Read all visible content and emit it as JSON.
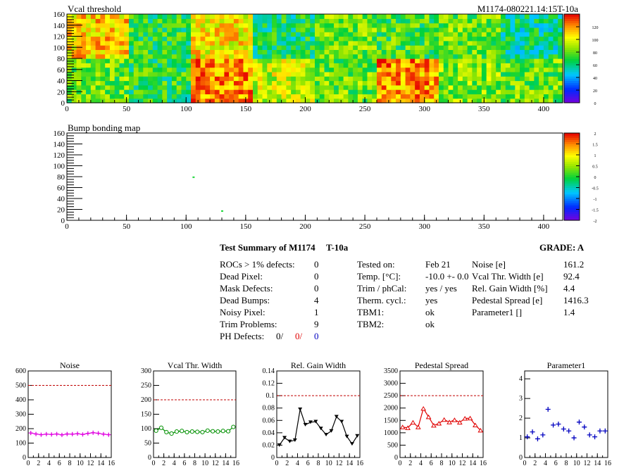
{
  "chart_data": [
    {
      "type": "heatmap",
      "title": "Vcal threshold",
      "module_label": "M1174-080221.14:15T-10a",
      "xlim": [
        0,
        416
      ],
      "ylim": [
        0,
        160
      ],
      "x_ticks": [
        0,
        50,
        100,
        150,
        200,
        250,
        300,
        350,
        400
      ],
      "y_ticks": [
        0,
        20,
        40,
        60,
        80,
        100,
        120,
        140,
        160
      ],
      "colorbar_ticks": [
        0,
        20,
        40,
        60,
        80,
        100,
        120
      ],
      "z_range": [
        0,
        140
      ],
      "roc_mean_values_top": [
        110,
        70,
        105,
        65,
        80,
        75,
        80,
        60
      ],
      "roc_mean_values_bottom": [
        80,
        70,
        120,
        95,
        80,
        120,
        85,
        80
      ]
    },
    {
      "type": "heatmap",
      "title": "Bump bonding map",
      "xlim": [
        0,
        416
      ],
      "ylim": [
        0,
        160
      ],
      "x_ticks": [
        0,
        50,
        100,
        150,
        200,
        250,
        300,
        350,
        400
      ],
      "y_ticks": [
        0,
        20,
        40,
        60,
        80,
        100,
        120,
        140,
        160
      ],
      "colorbar_ticks": [
        -2,
        -1.5,
        -1,
        -0.5,
        0,
        0.5,
        1,
        1.5,
        2
      ],
      "z_range": [
        -2,
        2
      ],
      "points": [
        {
          "x": 106,
          "y": 79
        },
        {
          "x": 130,
          "y": 17
        }
      ]
    },
    {
      "type": "line",
      "title": "Noise",
      "color": "#e000e0",
      "marker": "cross",
      "x": [
        0,
        1,
        2,
        3,
        4,
        5,
        6,
        7,
        8,
        9,
        10,
        11,
        12,
        13,
        14,
        15
      ],
      "values": [
        170,
        163,
        158,
        162,
        160,
        163,
        157,
        163,
        162,
        165,
        160,
        167,
        172,
        168,
        162,
        158
      ],
      "ylim": [
        0,
        600
      ],
      "y_ticks": [
        0,
        100,
        200,
        300,
        400,
        500,
        600
      ],
      "x_ticks": [
        0,
        2,
        4,
        6,
        8,
        10,
        12,
        14,
        16
      ],
      "threshold": 500
    },
    {
      "type": "line",
      "title": "Vcal Thr. Width",
      "color": "#009000",
      "marker": "circle",
      "x": [
        0,
        1,
        2,
        3,
        4,
        5,
        6,
        7,
        8,
        9,
        10,
        11,
        12,
        13,
        14,
        15
      ],
      "values": [
        93,
        103,
        88,
        83,
        90,
        92,
        88,
        90,
        89,
        88,
        93,
        91,
        90,
        92,
        91,
        106
      ],
      "ylim": [
        0,
        300
      ],
      "y_ticks": [
        0,
        50,
        100,
        150,
        200,
        250,
        300
      ],
      "x_ticks": [
        0,
        2,
        4,
        6,
        8,
        10,
        12,
        14,
        16
      ],
      "threshold": 200
    },
    {
      "type": "line",
      "title": "Rel. Gain Width",
      "color": "#000000",
      "marker": "triangle-down",
      "x": [
        0,
        1,
        2,
        3,
        4,
        5,
        6,
        7,
        8,
        9,
        10,
        11,
        12,
        13,
        14,
        15
      ],
      "values": [
        0.02,
        0.032,
        0.026,
        0.028,
        0.078,
        0.053,
        0.057,
        0.058,
        0.047,
        0.037,
        0.043,
        0.066,
        0.058,
        0.034,
        0.022,
        0.035
      ],
      "ylim": [
        0,
        0.14
      ],
      "y_ticks": [
        0,
        0.02,
        0.04,
        0.06,
        0.08,
        0.1,
        0.12,
        0.14
      ],
      "y_tick_labels": [
        "0",
        "0.02",
        "0.04",
        "0.06",
        "0.08",
        "0.1",
        "0.12",
        "0.14"
      ],
      "x_ticks": [
        0,
        2,
        4,
        6,
        8,
        10,
        12,
        14,
        16
      ],
      "threshold": 0.1
    },
    {
      "type": "line",
      "title": "Pedestal Spread",
      "color": "#e00000",
      "marker": "triangle-up",
      "x": [
        0,
        1,
        2,
        3,
        4,
        5,
        6,
        7,
        8,
        9,
        10,
        11,
        12,
        13,
        14,
        15
      ],
      "values": [
        1230,
        1200,
        1420,
        1230,
        1980,
        1640,
        1300,
        1380,
        1530,
        1430,
        1520,
        1420,
        1580,
        1590,
        1310,
        1100
      ],
      "ylim": [
        0,
        3500
      ],
      "y_ticks": [
        0,
        500,
        1000,
        1500,
        2000,
        2500,
        3000,
        3500
      ],
      "x_ticks": [
        0,
        2,
        4,
        6,
        8,
        10,
        12,
        14,
        16
      ],
      "threshold": 2500
    },
    {
      "type": "scatter",
      "title": "Parameter1",
      "color": "#0000c0",
      "marker": "cross",
      "x": [
        0,
        1,
        2,
        3,
        4,
        5,
        6,
        7,
        8,
        9,
        10,
        11,
        12,
        13,
        14,
        15
      ],
      "values": [
        1.05,
        1.3,
        0.95,
        1.15,
        2.45,
        1.65,
        1.7,
        1.45,
        1.35,
        1.0,
        1.8,
        1.55,
        1.15,
        1.05,
        1.35,
        1.35
      ],
      "ylim": [
        0,
        4.4
      ],
      "y_ticks": [
        0,
        1,
        2,
        3,
        4
      ],
      "x_ticks": [
        0,
        2,
        4,
        6,
        8,
        10,
        12,
        14,
        16
      ]
    }
  ],
  "summary": {
    "title": "Test Summary of M1174",
    "temp_id": "T-10a",
    "grade": "GRADE:  A",
    "col1": [
      {
        "label": "ROCs > 1% defects:",
        "value": "0"
      },
      {
        "label": "Dead Pixel:",
        "value": "0"
      },
      {
        "label": "Mask Defects:",
        "value": "0"
      },
      {
        "label": "Dead Bumps:",
        "value": "4"
      },
      {
        "label": "Noisy Pixel:",
        "value": "1"
      },
      {
        "label": "Trim Problems:",
        "value": "9"
      }
    ],
    "ph_label": "PH Defects:",
    "ph_values": [
      "0/",
      "0/",
      "0"
    ],
    "ph_colors": [
      "#000000",
      "#e00000",
      "#0000c0"
    ],
    "col2": [
      {
        "label": "Tested on:",
        "value": "Feb 21"
      },
      {
        "label": "Temp. [°C]:",
        "value": "-10.0 +- 0.0"
      },
      {
        "label": "Trim / phCal:",
        "value": "yes / yes"
      },
      {
        "label": "Therm. cycl.:",
        "value": "yes"
      },
      {
        "label": "TBM1:",
        "value": "ok"
      },
      {
        "label": "TBM2:",
        "value": "ok"
      }
    ],
    "col3": [
      {
        "label": "Noise [e]",
        "value": "161.2"
      },
      {
        "label": "Vcal Thr. Width [e]",
        "value": "92.4"
      },
      {
        "label": "Rel. Gain Width [%]",
        "value": "4.4"
      },
      {
        "label": "Pedestal Spread [e]",
        "value": "1416.3"
      },
      {
        "label": "Parameter1 []",
        "value": "1.4"
      }
    ]
  }
}
